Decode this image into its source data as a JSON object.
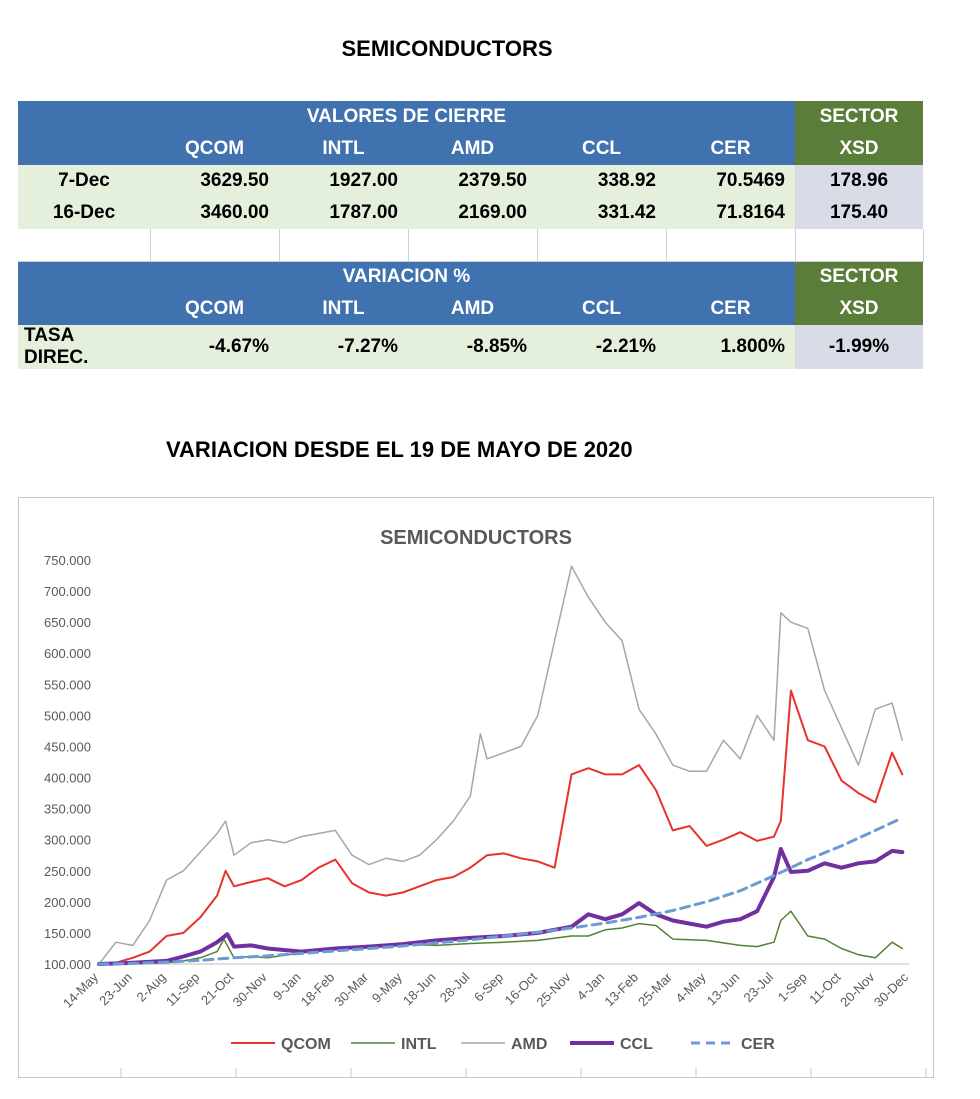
{
  "page_title": "SEMICONDUCTORS",
  "section_title": "VARIACION DESDE EL 19 DE MAYO DE 2020",
  "table1": {
    "header": "VALORES DE CIERRE",
    "sector_header": "SECTOR",
    "sector_sub": "XSD",
    "columns": [
      "QCOM",
      "INTL",
      "AMD",
      "CCL",
      "CER"
    ],
    "rows": [
      {
        "label": "7-Dec",
        "values": [
          "3629.50",
          "1927.00",
          "2379.50",
          "338.92",
          "70.5469"
        ],
        "xsd": "178.96"
      },
      {
        "label": "16-Dec",
        "values": [
          "3460.00",
          "1787.00",
          "2169.00",
          "331.42",
          "71.8164"
        ],
        "xsd": "175.40"
      }
    ]
  },
  "table2": {
    "header": "VARIACION %",
    "sector_header": "SECTOR",
    "sector_sub": "XSD",
    "columns": [
      "QCOM",
      "INTL",
      "AMD",
      "CCL",
      "CER"
    ],
    "rows": [
      {
        "label": "TASA DIREC.",
        "values": [
          "-4.67%",
          "-7.27%",
          "-8.85%",
          "-2.21%",
          "1.800%"
        ],
        "xsd": "-1.99%"
      }
    ]
  },
  "chart_data": {
    "type": "line",
    "title": "SEMICONDUCTORS",
    "ylim": [
      100,
      750
    ],
    "yticks": [
      "100.000",
      "150.000",
      "200.000",
      "250.000",
      "300.000",
      "350.000",
      "400.000",
      "450.000",
      "500.000",
      "550.000",
      "600.000",
      "650.000",
      "700.000",
      "750.000"
    ],
    "x_ticks": [
      "14-May",
      "23-Jun",
      "2-Aug",
      "11-Sep",
      "21-Oct",
      "30-Nov",
      "9-Jan",
      "18-Feb",
      "30-Mar",
      "9-May",
      "18-Jun",
      "28-Jul",
      "6-Sep",
      "16-Oct",
      "25-Nov",
      "4-Jan",
      "13-Feb",
      "25-Mar",
      "4-May",
      "13-Jun",
      "23-Jul",
      "1-Sep",
      "11-Oct",
      "20-Nov",
      "30-Dec"
    ],
    "grid": false,
    "legend_position": "bottom",
    "series": [
      {
        "name": "QCOM",
        "color": "#e8322c",
        "width": 2,
        "dash": "",
        "x": [
          0.0,
          0.5,
          1.0,
          1.5,
          2.0,
          2.5,
          3.0,
          3.5,
          3.75,
          4.0,
          4.5,
          5.0,
          5.5,
          6.0,
          6.5,
          7.0,
          7.5,
          8.0,
          8.5,
          9.0,
          9.5,
          10.0,
          10.5,
          11.0,
          11.5,
          12.0,
          12.5,
          13.0,
          13.5,
          14.0,
          14.5,
          15.0,
          15.5,
          16.0,
          16.5,
          17.0,
          17.5,
          18.0,
          18.5,
          19.0,
          19.5,
          20.0,
          20.2,
          20.5,
          21.0,
          21.5,
          22.0,
          22.5,
          23.0,
          23.5,
          23.8
        ],
        "values": [
          100,
          102,
          110,
          120,
          145,
          150,
          175,
          210,
          250,
          225,
          232,
          238,
          225,
          235,
          255,
          268,
          230,
          215,
          210,
          215,
          225,
          235,
          240,
          255,
          275,
          278,
          270,
          265,
          255,
          405,
          415,
          405,
          405,
          420,
          380,
          315,
          322,
          290,
          300,
          312,
          298,
          305,
          330,
          540,
          460,
          450,
          395,
          375,
          360,
          440,
          405
        ]
      },
      {
        "name": "INTL",
        "color": "#548235",
        "width": 1.5,
        "dash": "",
        "x": [
          0.0,
          1.0,
          2.0,
          2.5,
          3.0,
          3.5,
          3.7,
          4.0,
          4.5,
          5.0,
          6.0,
          7.0,
          8.0,
          9.0,
          10.0,
          11.0,
          12.0,
          13.0,
          14.0,
          14.5,
          15.0,
          15.5,
          16.0,
          16.5,
          17.0,
          18.0,
          19.0,
          19.5,
          20.0,
          20.2,
          20.5,
          21.0,
          21.5,
          22.0,
          22.5,
          23.0,
          23.5,
          23.8
        ],
        "values": [
          100,
          100,
          102,
          105,
          110,
          120,
          140,
          110,
          112,
          110,
          118,
          125,
          130,
          132,
          130,
          133,
          135,
          138,
          145,
          145,
          155,
          158,
          165,
          162,
          140,
          138,
          130,
          128,
          135,
          170,
          185,
          145,
          140,
          125,
          115,
          110,
          135,
          125
        ]
      },
      {
        "name": "AMD",
        "color": "#a6a6a6",
        "width": 1.5,
        "dash": "",
        "x": [
          0.0,
          0.5,
          1.0,
          1.5,
          2.0,
          2.5,
          3.0,
          3.5,
          3.75,
          4.0,
          4.5,
          5.0,
          5.5,
          6.0,
          6.5,
          7.0,
          7.5,
          8.0,
          8.5,
          9.0,
          9.5,
          10.0,
          10.5,
          11.0,
          11.3,
          11.5,
          12.0,
          12.5,
          13.0,
          13.5,
          14.0,
          14.5,
          15.0,
          15.5,
          16.0,
          16.5,
          17.0,
          17.5,
          18.0,
          18.5,
          19.0,
          19.5,
          20.0,
          20.2,
          20.5,
          21.0,
          21.5,
          22.0,
          22.5,
          23.0,
          23.5,
          23.8
        ],
        "values": [
          100,
          135,
          130,
          170,
          235,
          250,
          280,
          310,
          330,
          275,
          295,
          300,
          295,
          305,
          310,
          315,
          275,
          260,
          270,
          265,
          275,
          300,
          330,
          370,
          470,
          430,
          440,
          450,
          500,
          620,
          740,
          690,
          650,
          620,
          510,
          470,
          420,
          410,
          410,
          460,
          430,
          500,
          460,
          665,
          650,
          640,
          540,
          480,
          420,
          510,
          520,
          460
        ]
      },
      {
        "name": "CCL",
        "color": "#7030a0",
        "width": 4,
        "dash": "",
        "x": [
          0.0,
          1.0,
          2.0,
          2.5,
          3.0,
          3.5,
          3.8,
          4.0,
          4.5,
          5.0,
          6.0,
          7.0,
          8.0,
          9.0,
          10.0,
          11.0,
          12.0,
          13.0,
          14.0,
          14.5,
          15.0,
          15.5,
          16.0,
          16.5,
          17.0,
          17.5,
          18.0,
          18.5,
          19.0,
          19.5,
          20.0,
          20.2,
          20.5,
          21.0,
          21.5,
          22.0,
          22.5,
          23.0,
          23.5,
          23.8
        ],
        "values": [
          100,
          102,
          105,
          112,
          120,
          135,
          148,
          128,
          130,
          125,
          120,
          125,
          128,
          132,
          138,
          142,
          145,
          150,
          160,
          180,
          172,
          180,
          198,
          180,
          170,
          165,
          160,
          168,
          172,
          185,
          240,
          285,
          248,
          250,
          262,
          255,
          262,
          265,
          282,
          280
        ]
      },
      {
        "name": "CER",
        "color": "#6a9bd3",
        "width": 3,
        "dash": "9,6",
        "x": [
          0.0,
          1.0,
          2.0,
          3.0,
          4.0,
          5.0,
          6.0,
          7.0,
          8.0,
          9.0,
          10.0,
          11.0,
          12.0,
          13.0,
          14.0,
          15.0,
          16.0,
          17.0,
          18.0,
          19.0,
          20.0,
          21.0,
          22.0,
          23.0,
          23.8
        ],
        "values": [
          100,
          101,
          103,
          106,
          110,
          113,
          117,
          121,
          125,
          129,
          134,
          139,
          145,
          151,
          158,
          166,
          175,
          186,
          200,
          218,
          242,
          268,
          290,
          315,
          335
        ]
      }
    ]
  }
}
